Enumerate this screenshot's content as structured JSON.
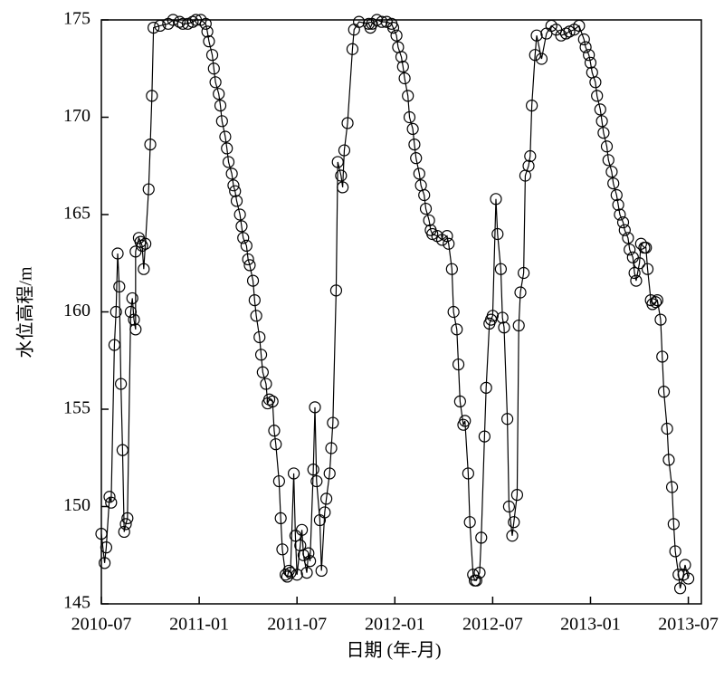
{
  "chart_data": {
    "type": "line",
    "xlabel": "日期 (年-月)",
    "ylabel": "水位高程/m",
    "color": "#000000",
    "marker": "circle",
    "xlim": [
      0,
      36.8
    ],
    "xticks": [
      {
        "value": 0,
        "label": "2010-07"
      },
      {
        "value": 6,
        "label": "2011-01"
      },
      {
        "value": 12,
        "label": "2011-07"
      },
      {
        "value": 18,
        "label": "2012-01"
      },
      {
        "value": 24,
        "label": "2012-07"
      },
      {
        "value": 30,
        "label": "2013-01"
      },
      {
        "value": 36,
        "label": "2013-07"
      }
    ],
    "ylim": [
      145,
      175
    ],
    "yticks": [
      145,
      150,
      155,
      160,
      165,
      170,
      175
    ],
    "x": [
      0,
      0.2,
      0.3,
      0.5,
      0.6,
      0.8,
      0.9,
      1.0,
      1.1,
      1.2,
      1.3,
      1.4,
      1.5,
      1.6,
      1.8,
      1.9,
      2.0,
      2.1,
      2.1,
      2.3,
      2.4,
      2.5,
      2.6,
      2.7,
      2.9,
      3.0,
      3.1,
      3.2,
      3.6,
      4.1,
      4.4,
      4.8,
      5.0,
      5.3,
      5.6,
      5.8,
      6.1,
      6.4,
      6.5,
      6.6,
      6.8,
      6.9,
      7.0,
      7.2,
      7.3,
      7.4,
      7.6,
      7.7,
      7.8,
      8.0,
      8.1,
      8.2,
      8.3,
      8.5,
      8.6,
      8.7,
      8.9,
      9.0,
      9.1,
      9.3,
      9.4,
      9.5,
      9.7,
      9.8,
      9.9,
      10.1,
      10.2,
      10.3,
      10.5,
      10.6,
      10.7,
      10.9,
      11.0,
      11.1,
      11.3,
      11.4,
      11.5,
      11.6,
      11.8,
      11.9,
      12.0,
      12.2,
      12.3,
      12.4,
      12.6,
      12.7,
      12.8,
      13.0,
      13.1,
      13.2,
      13.4,
      13.5,
      13.7,
      13.8,
      14.0,
      14.1,
      14.2,
      14.4,
      14.5,
      14.7,
      14.8,
      14.9,
      15.1,
      15.4,
      15.5,
      15.8,
      16.4,
      16.5,
      16.6,
      16.9,
      17.2,
      17.5,
      17.8,
      17.9,
      18.1,
      18.2,
      18.4,
      18.5,
      18.6,
      18.8,
      18.9,
      19.1,
      19.2,
      19.3,
      19.5,
      19.6,
      19.8,
      19.9,
      20.1,
      20.2,
      20.3,
      20.6,
      20.9,
      21.2,
      21.3,
      21.5,
      21.6,
      21.8,
      21.9,
      22.0,
      22.2,
      22.3,
      22.5,
      22.6,
      22.8,
      22.9,
      23.0,
      23.2,
      23.3,
      23.5,
      23.6,
      23.8,
      23.9,
      24.0,
      24.2,
      24.3,
      24.5,
      24.6,
      24.7,
      24.9,
      25.0,
      25.2,
      25.3,
      25.5,
      25.6,
      25.7,
      25.9,
      26.0,
      26.2,
      26.3,
      26.4,
      26.6,
      26.7,
      27.0,
      27.3,
      27.6,
      27.9,
      28.2,
      28.5,
      28.7,
      29.0,
      29.3,
      29.6,
      29.7,
      29.9,
      30.0,
      30.1,
      30.3,
      30.4,
      30.6,
      30.7,
      30.8,
      31.0,
      31.1,
      31.3,
      31.4,
      31.6,
      31.7,
      31.8,
      32.0,
      32.1,
      32.3,
      32.4,
      32.6,
      32.7,
      32.8,
      33.0,
      33.1,
      33.3,
      33.4,
      33.5,
      33.7,
      33.8,
      34.0,
      34.1,
      34.3,
      34.4,
      34.5,
      34.7,
      34.8,
      35.0,
      35.1,
      35.2,
      35.4,
      35.5,
      35.7,
      35.8,
      36.0
    ],
    "values": [
      148.6,
      147.1,
      147.9,
      150.5,
      150.2,
      158.3,
      160.0,
      163.0,
      161.3,
      156.3,
      152.9,
      148.7,
      149.1,
      149.4,
      160.0,
      160.7,
      159.6,
      159.1,
      163.1,
      163.8,
      163.6,
      163.4,
      162.2,
      163.5,
      166.3,
      168.6,
      171.1,
      174.6,
      174.7,
      174.8,
      175.0,
      174.9,
      174.8,
      174.8,
      174.9,
      175.0,
      175.0,
      174.8,
      174.4,
      173.9,
      173.2,
      172.5,
      171.8,
      171.2,
      170.6,
      169.8,
      169.0,
      168.4,
      167.7,
      167.1,
      166.5,
      166.2,
      165.7,
      165.0,
      164.4,
      163.8,
      163.4,
      162.7,
      162.4,
      161.6,
      160.6,
      159.8,
      158.7,
      157.8,
      156.9,
      156.3,
      155.3,
      155.5,
      155.4,
      153.9,
      153.2,
      151.3,
      149.4,
      147.8,
      146.5,
      146.4,
      146.7,
      146.6,
      151.7,
      148.5,
      146.5,
      148.0,
      148.8,
      147.5,
      146.6,
      147.6,
      147.2,
      151.9,
      155.1,
      151.3,
      149.3,
      146.7,
      149.7,
      150.4,
      151.7,
      153.0,
      154.3,
      161.1,
      167.7,
      167.0,
      166.4,
      168.3,
      169.7,
      173.5,
      174.5,
      174.9,
      174.8,
      174.6,
      174.8,
      175.0,
      174.9,
      174.9,
      174.8,
      174.6,
      174.2,
      173.6,
      173.1,
      172.6,
      172.0,
      171.1,
      170.0,
      169.4,
      168.6,
      167.9,
      167.1,
      166.5,
      166.0,
      165.3,
      164.7,
      164.2,
      164.0,
      163.9,
      163.7,
      163.9,
      163.5,
      162.2,
      160.0,
      159.1,
      157.3,
      155.4,
      154.2,
      154.4,
      151.7,
      149.2,
      146.5,
      146.2,
      146.2,
      146.6,
      148.4,
      153.6,
      156.1,
      159.4,
      159.6,
      159.8,
      165.8,
      164.0,
      162.2,
      159.7,
      159.2,
      154.5,
      150.0,
      148.5,
      149.2,
      150.6,
      159.3,
      161.0,
      162.0,
      167.0,
      167.5,
      168.0,
      170.6,
      173.2,
      174.2,
      173.0,
      174.3,
      174.7,
      174.5,
      174.2,
      174.3,
      174.4,
      174.5,
      174.7,
      174.0,
      173.6,
      173.2,
      172.8,
      172.3,
      171.8,
      171.1,
      170.4,
      169.8,
      169.2,
      168.5,
      167.8,
      167.2,
      166.6,
      166.0,
      165.5,
      165.0,
      164.6,
      164.2,
      163.8,
      163.2,
      162.8,
      162.0,
      161.6,
      162.5,
      163.5,
      163.3,
      163.3,
      162.2,
      160.6,
      160.4,
      160.5,
      160.6,
      159.6,
      157.7,
      155.9,
      154.0,
      152.4,
      151.0,
      149.1,
      147.7,
      146.5,
      145.8,
      146.5,
      147.0,
      146.3
    ]
  }
}
